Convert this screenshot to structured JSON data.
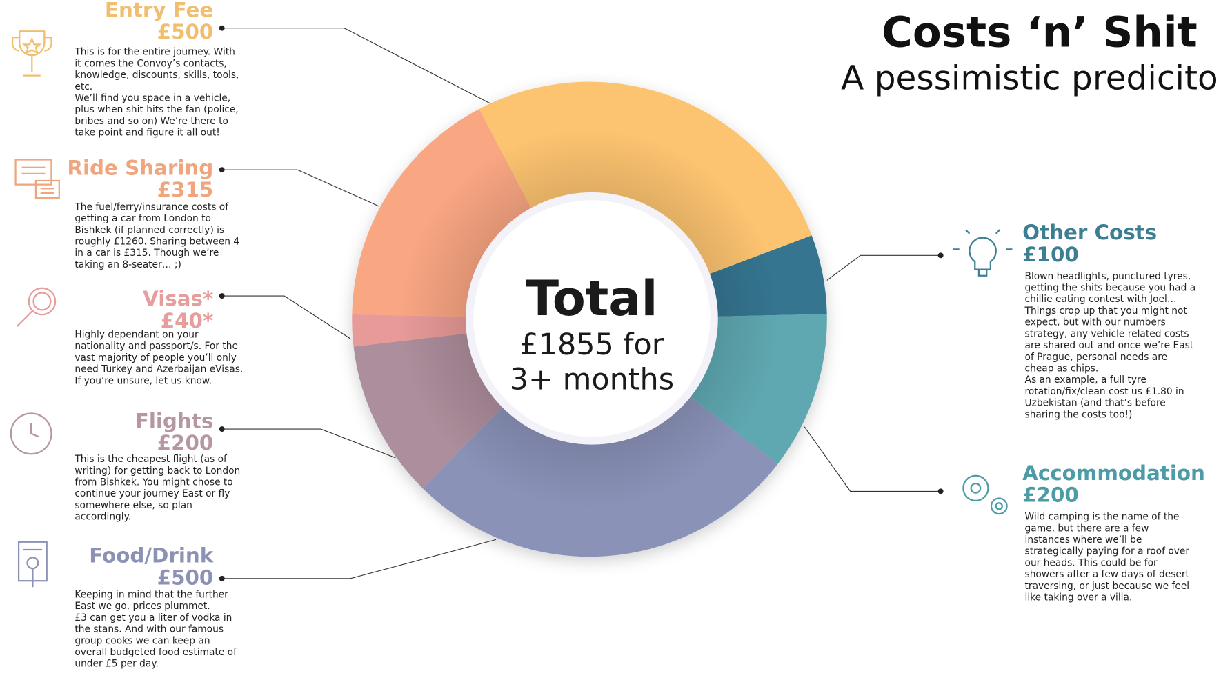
{
  "chart_data": {
    "type": "pie",
    "donut": true,
    "title": "Costs ‘n’ Shit",
    "subtitle": "A pessimistic prediciton",
    "center_title": "Total",
    "center_text": [
      "£1855 for",
      "3+ months"
    ],
    "categories": [
      "Entry Fee",
      "Other Costs",
      "Accommodation",
      "Food/Drink",
      "Flights",
      "Visas*",
      "Ride Sharing"
    ],
    "values": [
      500,
      100,
      200,
      500,
      200,
      40,
      315
    ],
    "value_labels": [
      "£500",
      "£100",
      "£200",
      "£500",
      "£200",
      "£40*",
      "£315"
    ],
    "colors": [
      "#fcc36f",
      "#357590",
      "#5ea8b1",
      "#8a92b8",
      "#ad8e9c",
      "#e89a98",
      "#f9a682"
    ],
    "label_colors": [
      "#f0be6e",
      "#3d7f92",
      "#4c9ba6",
      "#8c92b4",
      "#b7979f",
      "#e79d9c",
      "#efa57e"
    ],
    "descriptions": [
      [
        "This is for the entire journey. With",
        "it comes the Convoy’s contacts,",
        "knowledge, discounts, skills, tools,",
        "etc.",
        "We’ll find you space in a vehicle,",
        "plus when shit hits the fan (police,",
        "bribes and so on) We’re there to",
        "take point and figure it all out!"
      ],
      [
        "Blown headlights, punctured tyres,",
        "getting the shits because you had a",
        "chillie eating contest with Joel…",
        "Things crop up that you might not",
        "expect, but with our numbers",
        "strategy, any vehicle related costs",
        "are shared out and once we’re East",
        "of Prague, personal needs are",
        "cheap as chips.",
        "As an example, a full tyre",
        "rotation/fix/clean cost us £1.80 in",
        "Uzbekistan (and that’s before",
        "sharing the costs too!)"
      ],
      [
        "Wild camping is the name of the",
        "game, but there are a few",
        "instances where we’ll be",
        "strategically paying for a roof over",
        "our heads. This could be for",
        "showers after a few days of desert",
        "traversing, or just because we feel",
        "like taking over a villa."
      ],
      [
        "Keeping in mind that the further",
        "East we go, prices plummet.",
        "£3 can get you a liter of vodka in",
        "the stans. And with our famous",
        "group cooks we can keep an",
        "overall budgeted food estimate of",
        "under £5 per day."
      ],
      [
        "This is the cheapest flight (as of",
        "writing) for getting back to London",
        "from Bishkek. You might chose to",
        "continue your journey East or fly",
        "somewhere else, so plan",
        "accordingly."
      ],
      [
        "Highly dependant on your",
        "nationality and passport/s. For the",
        "vast majority of people you’ll only",
        "need Turkey and Azerbaijan eVisas.",
        "If you’re unsure, let us know."
      ],
      [
        "The fuel/ferry/insurance costs of",
        "getting a car from London to",
        "Bishkek (if planned correctly) is",
        "roughly £1260. Sharing between 4",
        "in a car is £315. Though we’re",
        "taking an 8-seater… ;)"
      ]
    ]
  }
}
